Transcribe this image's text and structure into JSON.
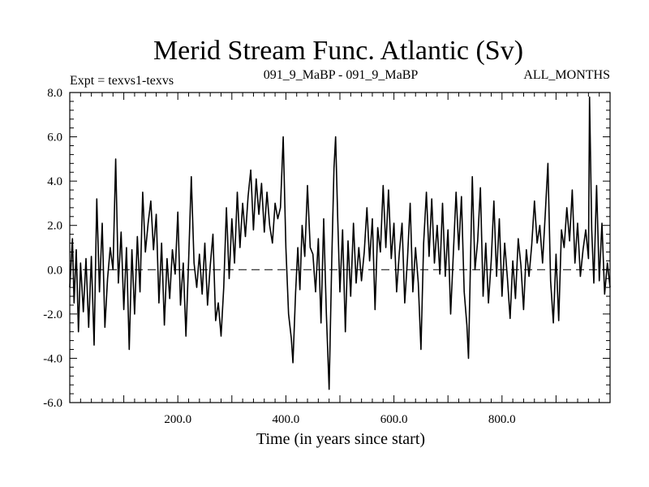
{
  "chart_data": {
    "type": "line",
    "title": "Merid Stream Func. Atlantic (Sv)",
    "header_left": "Expt = texvs1-texvs",
    "header_center": "091_9_MaBP - 091_9_MaBP",
    "header_right": "ALL_MONTHS",
    "xlabel": "Time (in years since start)",
    "ylabel": "",
    "xlim": [
      0,
      1000
    ],
    "ylim": [
      -6.0,
      8.0
    ],
    "xticks": [
      200,
      400,
      600,
      800
    ],
    "xtick_labels": [
      "200.0",
      "400.0",
      "600.0",
      "800.0"
    ],
    "yticks": [
      8,
      6,
      4,
      2,
      0,
      -2,
      -4,
      -6
    ],
    "ytick_labels": [
      "8.0",
      "6.0",
      "4.0",
      "2.0",
      "0.0",
      "-2.0",
      "-4.0",
      "-6.0"
    ],
    "zero_line": {
      "y": 0.0,
      "style": "dashed"
    },
    "series": [
      {
        "name": "Merid Stream Func. Atlantic",
        "color": "#000000",
        "points": [
          [
            0,
            -0.8
          ],
          [
            5,
            1.4
          ],
          [
            8,
            -1.5
          ],
          [
            12,
            0.9
          ],
          [
            16,
            -2.8
          ],
          [
            20,
            0.3
          ],
          [
            25,
            -1.9
          ],
          [
            30,
            0.5
          ],
          [
            35,
            -2.6
          ],
          [
            40,
            0.6
          ],
          [
            45,
            -3.4
          ],
          [
            50,
            3.2
          ],
          [
            55,
            -1.0
          ],
          [
            60,
            2.1
          ],
          [
            65,
            -2.6
          ],
          [
            70,
            -0.4
          ],
          [
            75,
            1.0
          ],
          [
            80,
            0.0
          ],
          [
            85,
            5.0
          ],
          [
            90,
            -0.6
          ],
          [
            95,
            1.7
          ],
          [
            100,
            -1.8
          ],
          [
            105,
            1.0
          ],
          [
            110,
            -3.6
          ],
          [
            115,
            0.9
          ],
          [
            120,
            -2.0
          ],
          [
            125,
            1.5
          ],
          [
            130,
            -1.0
          ],
          [
            135,
            3.5
          ],
          [
            140,
            0.8
          ],
          [
            145,
            2.1
          ],
          [
            150,
            3.1
          ],
          [
            155,
            0.9
          ],
          [
            160,
            2.5
          ],
          [
            165,
            -1.5
          ],
          [
            170,
            1.2
          ],
          [
            175,
            -2.5
          ],
          [
            180,
            0.5
          ],
          [
            185,
            -1.3
          ],
          [
            190,
            0.9
          ],
          [
            195,
            -0.2
          ],
          [
            200,
            2.6
          ],
          [
            205,
            -1.6
          ],
          [
            210,
            0.3
          ],
          [
            215,
            -3.0
          ],
          [
            220,
            0.4
          ],
          [
            225,
            4.2
          ],
          [
            230,
            0.3
          ],
          [
            235,
            -0.8
          ],
          [
            240,
            0.7
          ],
          [
            245,
            -1.1
          ],
          [
            250,
            1.2
          ],
          [
            255,
            -1.6
          ],
          [
            260,
            0.2
          ],
          [
            265,
            1.6
          ],
          [
            270,
            -2.3
          ],
          [
            275,
            -1.5
          ],
          [
            280,
            -3.0
          ],
          [
            285,
            -0.8
          ],
          [
            290,
            2.8
          ],
          [
            295,
            -0.4
          ],
          [
            300,
            2.3
          ],
          [
            305,
            0.3
          ],
          [
            310,
            3.5
          ],
          [
            315,
            1.0
          ],
          [
            320,
            3.0
          ],
          [
            325,
            1.5
          ],
          [
            330,
            3.3
          ],
          [
            335,
            4.5
          ],
          [
            340,
            1.8
          ],
          [
            345,
            4.1
          ],
          [
            350,
            2.5
          ],
          [
            355,
            3.9
          ],
          [
            360,
            1.7
          ],
          [
            365,
            3.5
          ],
          [
            370,
            2.0
          ],
          [
            375,
            1.2
          ],
          [
            380,
            3.0
          ],
          [
            385,
            2.3
          ],
          [
            390,
            2.8
          ],
          [
            395,
            6.0
          ],
          [
            400,
            1.0
          ],
          [
            405,
            -2.0
          ],
          [
            410,
            -3.1
          ],
          [
            413,
            -4.2
          ],
          [
            418,
            -1.0
          ],
          [
            422,
            1.0
          ],
          [
            426,
            -0.9
          ],
          [
            430,
            2.0
          ],
          [
            435,
            0.6
          ],
          [
            440,
            3.8
          ],
          [
            445,
            1.0
          ],
          [
            450,
            0.7
          ],
          [
            455,
            -1.0
          ],
          [
            460,
            1.4
          ],
          [
            465,
            -2.4
          ],
          [
            470,
            2.3
          ],
          [
            475,
            -2.0
          ],
          [
            480,
            -5.4
          ],
          [
            485,
            0.5
          ],
          [
            489,
            4.6
          ],
          [
            492,
            6.0
          ],
          [
            496,
            2.3
          ],
          [
            500,
            -1.0
          ],
          [
            505,
            1.8
          ],
          [
            510,
            -2.8
          ],
          [
            515,
            1.3
          ],
          [
            520,
            -1.2
          ],
          [
            525,
            2.1
          ],
          [
            530,
            -0.6
          ],
          [
            535,
            1.0
          ],
          [
            540,
            -0.5
          ],
          [
            545,
            0.8
          ],
          [
            550,
            2.8
          ],
          [
            555,
            0.4
          ],
          [
            560,
            2.3
          ],
          [
            565,
            -1.8
          ],
          [
            570,
            1.9
          ],
          [
            575,
            0.8
          ],
          [
            580,
            3.8
          ],
          [
            585,
            1.0
          ],
          [
            590,
            3.6
          ],
          [
            595,
            0.5
          ],
          [
            600,
            2.1
          ],
          [
            605,
            -1.0
          ],
          [
            610,
            0.8
          ],
          [
            615,
            2.1
          ],
          [
            620,
            -1.5
          ],
          [
            625,
            0.5
          ],
          [
            630,
            3.0
          ],
          [
            635,
            -1.0
          ],
          [
            640,
            1.0
          ],
          [
            645,
            -0.6
          ],
          [
            650,
            -3.6
          ],
          [
            655,
            1.2
          ],
          [
            660,
            3.5
          ],
          [
            665,
            0.6
          ],
          [
            670,
            3.2
          ],
          [
            675,
            0.3
          ],
          [
            680,
            2.0
          ],
          [
            685,
            -0.2
          ],
          [
            690,
            3.0
          ],
          [
            695,
            -0.3
          ],
          [
            700,
            1.8
          ],
          [
            705,
            -2.0
          ],
          [
            710,
            0.8
          ],
          [
            715,
            3.5
          ],
          [
            720,
            0.9
          ],
          [
            725,
            3.3
          ],
          [
            730,
            -1.0
          ],
          [
            735,
            -2.5
          ],
          [
            738,
            -4.0
          ],
          [
            742,
            0.8
          ],
          [
            745,
            4.2
          ],
          [
            750,
            0.0
          ],
          [
            755,
            1.3
          ],
          [
            760,
            3.7
          ],
          [
            765,
            -1.2
          ],
          [
            770,
            1.2
          ],
          [
            775,
            -1.5
          ],
          [
            780,
            0.4
          ],
          [
            785,
            3.1
          ],
          [
            790,
            -0.3
          ],
          [
            795,
            2.3
          ],
          [
            800,
            -1.2
          ],
          [
            805,
            1.2
          ],
          [
            810,
            -0.4
          ],
          [
            815,
            -2.2
          ],
          [
            820,
            0.4
          ],
          [
            825,
            -1.3
          ],
          [
            830,
            1.4
          ],
          [
            835,
            0.2
          ],
          [
            840,
            -1.8
          ],
          [
            845,
            0.9
          ],
          [
            850,
            -0.3
          ],
          [
            855,
            1.1
          ],
          [
            860,
            3.1
          ],
          [
            865,
            1.2
          ],
          [
            870,
            2.0
          ],
          [
            875,
            0.3
          ],
          [
            880,
            2.5
          ],
          [
            885,
            4.8
          ],
          [
            890,
            -0.5
          ],
          [
            895,
            -2.4
          ],
          [
            900,
            0.7
          ],
          [
            905,
            -2.3
          ],
          [
            910,
            1.8
          ],
          [
            915,
            1.0
          ],
          [
            920,
            2.8
          ],
          [
            925,
            1.3
          ],
          [
            930,
            3.6
          ],
          [
            935,
            0.3
          ],
          [
            940,
            2.1
          ],
          [
            945,
            -0.3
          ],
          [
            950,
            0.9
          ],
          [
            955,
            1.8
          ],
          [
            960,
            0.5
          ],
          [
            962,
            7.8
          ],
          [
            966,
            1.8
          ],
          [
            970,
            -0.6
          ],
          [
            975,
            3.8
          ],
          [
            980,
            -0.5
          ],
          [
            985,
            2.1
          ],
          [
            990,
            -1.1
          ],
          [
            995,
            0.3
          ],
          [
            1000,
            -0.8
          ]
        ]
      }
    ]
  }
}
